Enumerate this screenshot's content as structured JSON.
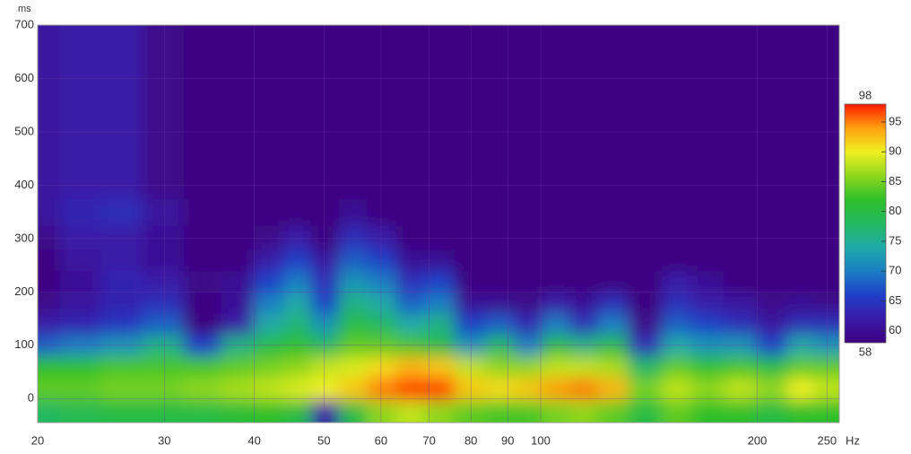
{
  "chart_data": {
    "type": "heatmap",
    "x_label": "Hz",
    "y_label": "ms",
    "x": [
      20,
      23,
      26,
      30,
      34,
      38,
      42,
      46,
      50,
      55,
      60,
      66,
      72,
      80,
      88,
      96,
      105,
      115,
      125,
      140,
      155,
      170,
      190,
      210,
      230,
      250
    ],
    "y": [
      -25,
      20,
      60,
      100,
      140,
      180,
      220,
      260,
      300,
      350,
      400
    ],
    "z": [
      [
        78,
        79,
        80,
        80,
        80,
        81,
        82,
        80,
        62,
        80,
        86,
        88,
        86,
        84,
        83,
        83,
        85,
        86,
        84,
        80,
        84,
        82,
        82,
        80,
        82,
        82
      ],
      [
        84,
        84,
        85,
        85,
        86,
        87,
        88,
        89,
        90,
        92,
        95,
        97,
        97,
        92,
        91,
        92,
        94,
        95,
        93,
        85,
        88,
        86,
        88,
        86,
        90,
        88
      ],
      [
        82,
        82,
        83,
        83,
        83,
        84,
        85,
        86,
        88,
        89,
        91,
        93,
        92,
        88,
        86,
        86,
        88,
        88,
        87,
        78,
        84,
        82,
        83,
        80,
        84,
        84
      ],
      [
        68,
        70,
        72,
        76,
        66,
        76,
        80,
        82,
        78,
        84,
        84,
        83,
        80,
        72,
        78,
        70,
        80,
        76,
        80,
        64,
        74,
        72,
        72,
        66,
        74,
        72
      ],
      [
        62,
        63,
        65,
        68,
        58,
        62,
        74,
        77,
        72,
        80,
        78,
        74,
        76,
        66,
        68,
        63,
        70,
        64,
        70,
        59,
        68,
        66,
        64,
        61,
        64,
        64
      ],
      [
        59,
        61,
        63,
        64,
        58,
        60,
        70,
        74,
        66,
        76,
        74,
        68,
        70,
        60,
        60,
        59,
        62,
        60,
        64,
        58,
        64,
        62,
        61,
        59,
        60,
        59
      ],
      [
        58,
        60,
        63,
        62,
        59,
        60,
        66,
        70,
        64,
        72,
        70,
        64,
        66,
        58,
        58,
        58,
        58,
        58,
        58,
        58,
        62,
        60,
        58,
        58,
        58,
        58
      ],
      [
        58,
        61,
        62,
        60,
        58,
        58,
        62,
        66,
        61,
        68,
        66,
        60,
        60,
        58,
        58,
        58,
        58,
        58,
        58,
        58,
        58,
        58,
        58,
        58,
        58,
        58
      ],
      [
        59,
        62,
        62,
        60,
        58,
        58,
        59,
        62,
        58,
        64,
        62,
        58,
        58,
        58,
        58,
        58,
        58,
        58,
        58,
        58,
        58,
        58,
        58,
        58,
        58,
        58
      ],
      [
        61,
        63,
        64,
        61,
        58,
        58,
        58,
        58,
        58,
        60,
        58,
        58,
        58,
        58,
        58,
        58,
        58,
        58,
        58,
        58,
        58,
        58,
        58,
        58,
        58,
        58
      ],
      [
        61,
        62,
        62,
        59,
        58,
        58,
        58,
        58,
        58,
        58,
        58,
        58,
        58,
        58,
        58,
        58,
        58,
        58,
        58,
        58,
        58,
        58,
        58,
        58,
        58,
        58
      ]
    ],
    "xlim": [
      20,
      260
    ],
    "x_scale": "log",
    "xticks": [
      20,
      30,
      40,
      50,
      60,
      70,
      80,
      90,
      100,
      200,
      250
    ],
    "ylim": [
      -45,
      700
    ],
    "yticks": [
      0,
      100,
      200,
      300,
      400,
      500,
      600,
      700
    ],
    "grid": true,
    "clim": [
      58,
      98
    ],
    "cticks": [
      60,
      65,
      70,
      75,
      80,
      85,
      90,
      95
    ],
    "colorscale": [
      [
        58,
        "#3c0080"
      ],
      [
        62,
        "#3a1aa8"
      ],
      [
        66,
        "#1f3fc8"
      ],
      [
        70,
        "#1a7ec4"
      ],
      [
        74,
        "#20aaa8"
      ],
      [
        78,
        "#22b860"
      ],
      [
        82,
        "#2ec02a"
      ],
      [
        86,
        "#8ed61c"
      ],
      [
        90,
        "#f0f020"
      ],
      [
        94,
        "#ffa010"
      ],
      [
        98,
        "#ff1a00"
      ]
    ]
  }
}
